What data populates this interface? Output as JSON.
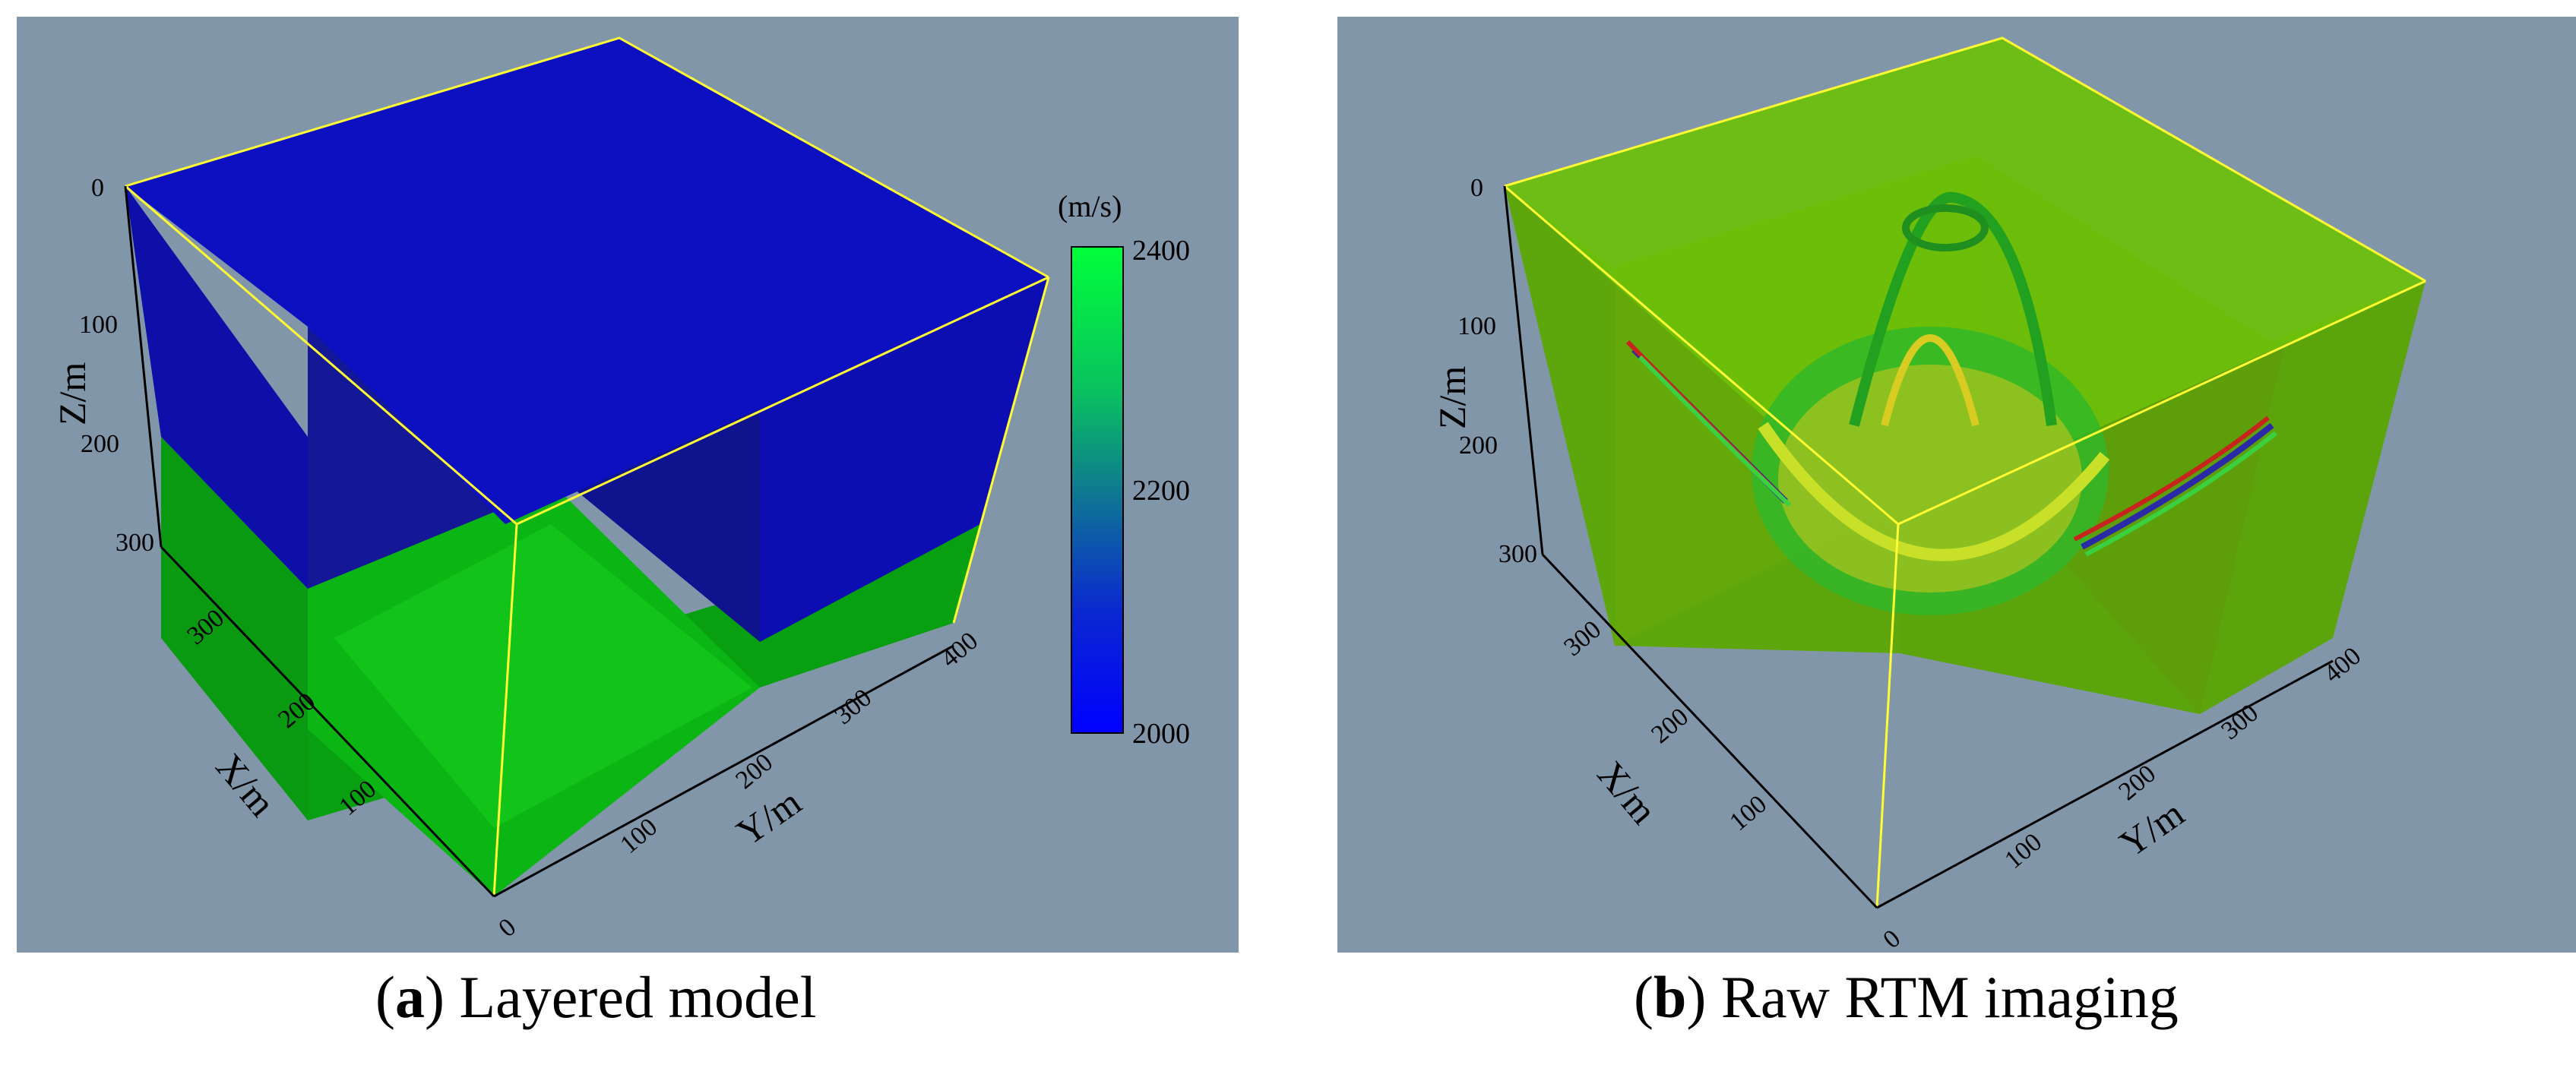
{
  "panels": {
    "a": {
      "caption_letter": "a",
      "caption_text": "Layered model",
      "z_label": "Z/m",
      "x_label": "X/m",
      "y_label": "Y/m",
      "z_ticks": [
        "0",
        "100",
        "200",
        "300"
      ],
      "x_ticks": [
        "100",
        "200",
        "300"
      ],
      "y_ticks": [
        "0",
        "100",
        "200",
        "300",
        "400"
      ],
      "colorbar": {
        "unit": "(m/s)",
        "ticks": [
          "2400",
          "2200",
          "2000"
        ],
        "colors": [
          "#00ff3a",
          "#0aa870",
          "#1060a0",
          "#0a28d0",
          "#0000ff"
        ]
      },
      "colors": {
        "background": "#8296aa",
        "upper_layer": "#0c10c0",
        "lower_layer": "#0fc012",
        "frame_line": "#ffff33"
      }
    },
    "b": {
      "caption_letter": "b",
      "caption_text": "Raw RTM imaging",
      "z_label": "Z/m",
      "x_label": "X/m",
      "y_label": "Y/m",
      "z_ticks": [
        "0",
        "100",
        "200",
        "300"
      ],
      "x_ticks": [
        "100",
        "200",
        "300"
      ],
      "y_ticks": [
        "0",
        "100",
        "200",
        "300",
        "400"
      ],
      "colors": {
        "background": "#8296aa",
        "volume": "#6cc00a",
        "frame_line": "#ffff33"
      }
    }
  }
}
